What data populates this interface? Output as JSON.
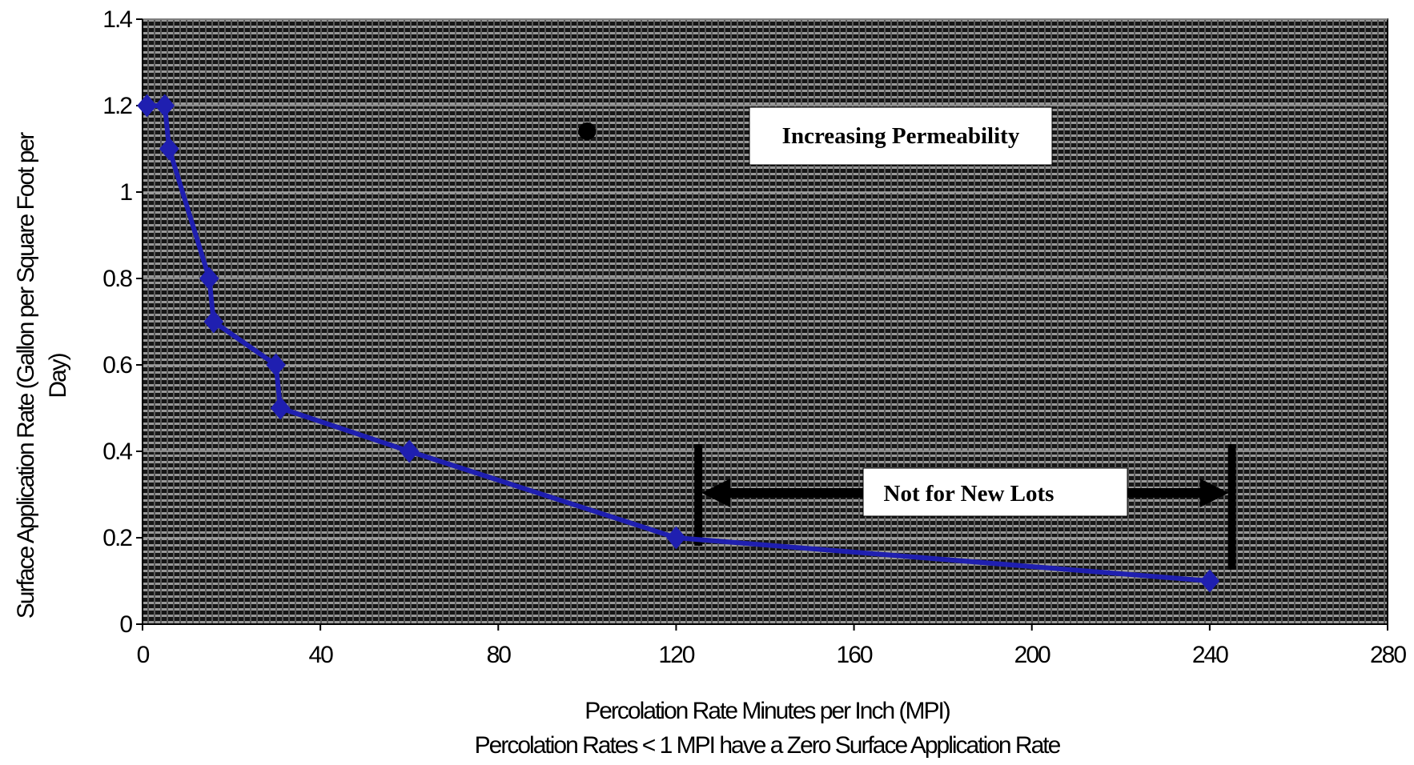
{
  "chart_data": {
    "type": "line",
    "x": [
      1,
      5,
      6,
      15,
      16,
      30,
      31,
      60,
      120,
      240
    ],
    "series": [
      {
        "values": [
          1.2,
          1.2,
          1.1,
          0.8,
          0.7,
          0.6,
          0.5,
          0.4,
          0.2,
          0.1
        ],
        "color": "#1f1fb0"
      }
    ],
    "xlim": [
      0,
      280
    ],
    "ylim": [
      0,
      1.4
    ],
    "xticks": [
      0,
      40,
      80,
      120,
      160,
      200,
      240,
      280
    ],
    "yticks": [
      0,
      0.2,
      0.4,
      0.6,
      0.8,
      1,
      1.2,
      1.4
    ],
    "xtick_labels": [
      "0",
      "40",
      "80",
      "120",
      "160",
      "200",
      "240",
      "280"
    ],
    "ytick_labels": [
      "0",
      "0.2",
      "0.4",
      "0.6",
      "0.8",
      "1",
      "1.2",
      "1.4"
    ],
    "xlabel": "Percolation Rate Minutes per Inch (MPI)",
    "xlabel_note": "Percolation Rates < 1 MPI have a Zero Surface Application Rate",
    "ylabel_line1": "Surface Application Rate (Gallon per Square Foot per",
    "ylabel_line2": "Day)",
    "annotations": {
      "increasing_permeability": {
        "text": "Increasing Permeability",
        "x": 100
      },
      "not_for_new_lots": {
        "text": "Not for New Lots",
        "x_from": 125,
        "x_to": 245,
        "y": 0.3
      }
    },
    "plot_background": "#1a1a1a",
    "grid_color": "#a8a8a8",
    "grid": true,
    "legend": "none"
  }
}
